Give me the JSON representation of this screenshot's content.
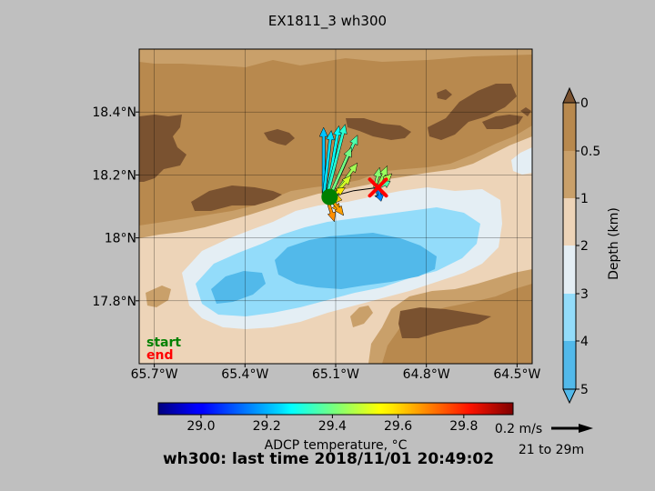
{
  "title": "EX1811_3 wh300",
  "footer": "wh300: last time 2018/11/01 20:49:02",
  "start_label": "start",
  "end_label": "end",
  "colors": {
    "background": "#bfbfbf",
    "start": "#008000",
    "end": "#ff0000",
    "depth_levels": [
      "#7a5230",
      "#b8894e",
      "#c9a06a",
      "#edd4b8",
      "#e4eef4",
      "#93dcfa",
      "#52b9ea"
    ]
  },
  "chart_data": {
    "type": "map",
    "xlim": [
      -65.75,
      -64.45
    ],
    "ylim": [
      17.6,
      18.6
    ],
    "x_ticks": [
      {
        "value": -65.7,
        "label": "65.7°W"
      },
      {
        "value": -65.4,
        "label": "65.4°W"
      },
      {
        "value": -65.1,
        "label": "65.1°W"
      },
      {
        "value": -64.8,
        "label": "64.8°W"
      },
      {
        "value": -64.5,
        "label": "64.5°W"
      }
    ],
    "y_ticks": [
      {
        "value": 17.8,
        "label": "17.8°N"
      },
      {
        "value": 18.0,
        "label": "18°N"
      },
      {
        "value": 18.2,
        "label": "18.2°N"
      },
      {
        "value": 18.4,
        "label": "18.4°N"
      }
    ],
    "grid": true,
    "start": {
      "lon": -65.12,
      "lat": 18.13
    },
    "end": {
      "lon": -64.96,
      "lat": 18.16
    },
    "track": [
      [
        -65.12,
        18.13
      ],
      [
        -65.04,
        18.15
      ],
      [
        -64.96,
        18.16
      ]
    ],
    "vectors": [
      {
        "lon": -65.14,
        "lat": 18.13,
        "u": 0.0,
        "v": 0.45,
        "temp": 29.22
      },
      {
        "lon": -65.14,
        "lat": 18.13,
        "u": 0.05,
        "v": 0.43,
        "temp": 29.25
      },
      {
        "lon": -65.13,
        "lat": 18.13,
        "u": 0.08,
        "v": 0.46,
        "temp": 29.28
      },
      {
        "lon": -65.13,
        "lat": 18.13,
        "u": 0.12,
        "v": 0.47,
        "temp": 29.32
      },
      {
        "lon": -65.12,
        "lat": 18.13,
        "u": 0.18,
        "v": 0.4,
        "temp": 29.36
      },
      {
        "lon": -65.12,
        "lat": 18.13,
        "u": 0.14,
        "v": 0.32,
        "temp": 29.4
      },
      {
        "lon": -65.11,
        "lat": 18.13,
        "u": 0.16,
        "v": 0.22,
        "temp": 29.45
      },
      {
        "lon": -65.11,
        "lat": 18.13,
        "u": 0.12,
        "v": 0.14,
        "temp": 29.5
      },
      {
        "lon": -65.12,
        "lat": 18.13,
        "u": 0.1,
        "v": 0.06,
        "temp": 29.58
      },
      {
        "lon": -65.12,
        "lat": 18.13,
        "u": 0.08,
        "v": -0.02,
        "temp": 29.62
      },
      {
        "lon": -65.12,
        "lat": 18.13,
        "u": 0.07,
        "v": -0.1,
        "temp": 29.65
      },
      {
        "lon": -65.12,
        "lat": 18.13,
        "u": 0.09,
        "v": -0.12,
        "temp": 29.66
      },
      {
        "lon": -65.13,
        "lat": 18.13,
        "u": 0.05,
        "v": -0.16,
        "temp": 29.68
      },
      {
        "lon": -64.97,
        "lat": 18.16,
        "u": 0.03,
        "v": 0.13,
        "temp": 29.42
      },
      {
        "lon": -64.96,
        "lat": 18.16,
        "u": 0.06,
        "v": 0.14,
        "temp": 29.44
      },
      {
        "lon": -64.96,
        "lat": 18.16,
        "u": 0.09,
        "v": 0.09,
        "temp": 29.46
      },
      {
        "lon": -64.96,
        "lat": 18.16,
        "u": 0.08,
        "v": 0.04,
        "temp": 29.36
      },
      {
        "lon": -64.97,
        "lat": 18.16,
        "u": 0.04,
        "v": -0.08,
        "temp": 29.18
      },
      {
        "lon": -64.96,
        "lat": 18.16,
        "u": 0.02,
        "v": -0.09,
        "temp": 29.15
      }
    ],
    "depth_colorbar": {
      "label": "Depth (km)",
      "ticks": [
        {
          "value": 0,
          "label": "0"
        },
        {
          "value": 0.5,
          "label": "0.5"
        },
        {
          "value": 1,
          "label": "1"
        },
        {
          "value": 2,
          "label": "2"
        },
        {
          "value": 3,
          "label": "3"
        },
        {
          "value": 4,
          "label": "4"
        },
        {
          "value": 5,
          "label": "5"
        }
      ]
    },
    "temp_colorbar": {
      "label": "ADCP temperature, °C",
      "range": [
        28.87,
        29.95
      ],
      "ticks": [
        {
          "value": 29.0,
          "label": "29.0"
        },
        {
          "value": 29.2,
          "label": "29.2"
        },
        {
          "value": 29.4,
          "label": "29.4"
        },
        {
          "value": 29.6,
          "label": "29.6"
        },
        {
          "value": 29.8,
          "label": "29.8"
        }
      ]
    },
    "scale_arrow": {
      "speed_label": "0.2 m/s",
      "value_ms": 0.2,
      "depth_range": "21 to 29m"
    }
  }
}
